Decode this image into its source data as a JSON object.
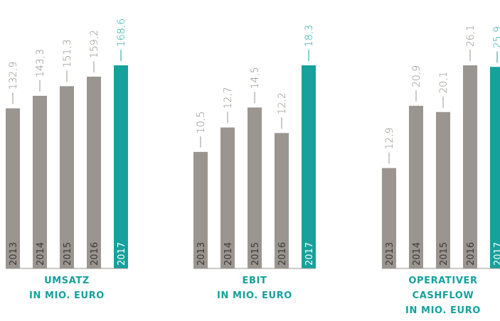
{
  "chart_data": [
    {
      "type": "bar",
      "title": [
        "UMSATZ",
        "IN MIO. EURO"
      ],
      "categories": [
        "2013",
        "2014",
        "2015",
        "2016",
        "2017"
      ],
      "values": [
        132.9,
        143.3,
        151.3,
        159.2,
        168.6
      ],
      "value_labels": [
        "132,9",
        "143,3",
        "151,3",
        "159,2",
        "168,6"
      ],
      "colors": [
        "#9a958f",
        "#9a958f",
        "#9a958f",
        "#9a958f",
        "#16a19d"
      ],
      "ylim": [
        0,
        168.6
      ]
    },
    {
      "type": "bar",
      "title": [
        "EBIT",
        "IN MIO. EURO"
      ],
      "categories": [
        "2013",
        "2014",
        "2015",
        "2016",
        "2017"
      ],
      "values": [
        10.5,
        12.7,
        14.5,
        12.2,
        18.3
      ],
      "value_labels": [
        "10,5",
        "12,7",
        "14,5",
        "12,2",
        "18,3"
      ],
      "colors": [
        "#9a958f",
        "#9a958f",
        "#9a958f",
        "#9a958f",
        "#16a19d"
      ],
      "ylim": [
        0,
        18.3
      ]
    },
    {
      "type": "bar",
      "title": [
        "OPERATIVER",
        "CASHFLOW",
        "IN MIO. EURO"
      ],
      "categories": [
        "2013",
        "2014",
        "2015",
        "2016",
        "2017"
      ],
      "values": [
        12.9,
        20.9,
        20.1,
        26.1,
        25.9
      ],
      "value_labels": [
        "12,9",
        "20,9",
        "20,1",
        "26,1",
        "25,9"
      ],
      "colors": [
        "#9a958f",
        "#9a958f",
        "#9a958f",
        "#9a958f",
        "#16a19d"
      ],
      "ylim": [
        0,
        26.1
      ]
    }
  ]
}
